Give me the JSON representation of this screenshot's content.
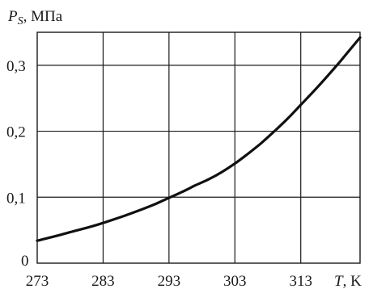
{
  "chart_data": {
    "type": "line",
    "ylabel_var": "P",
    "ylabel_sub": "S",
    "ylabel_unit": ", МПа",
    "xlabel_var": "T",
    "xlabel_unit": ", K",
    "xlim": [
      273,
      322
    ],
    "ylim": [
      0,
      0.35
    ],
    "x_ticks": [
      {
        "value": 273,
        "label": "273"
      },
      {
        "value": 283,
        "label": "283"
      },
      {
        "value": 293,
        "label": "293"
      },
      {
        "value": 303,
        "label": "303"
      },
      {
        "value": 313,
        "label": "313"
      }
    ],
    "y_ticks": [
      {
        "value": 0,
        "label": "0"
      },
      {
        "value": 0.1,
        "label": "0,1"
      },
      {
        "value": 0.2,
        "label": "0,2"
      },
      {
        "value": 0.3,
        "label": "0,3"
      }
    ],
    "grid": true,
    "series": [
      {
        "x": [
          273,
          275,
          278,
          281,
          283,
          286,
          289,
          291,
          293,
          295,
          297,
          299,
          301,
          303,
          305,
          307,
          309,
          311,
          313,
          315,
          317,
          319,
          320,
          322
        ],
        "y": [
          0.034,
          0.039,
          0.047,
          0.055,
          0.061,
          0.071,
          0.082,
          0.09,
          0.099,
          0.108,
          0.118,
          0.127,
          0.138,
          0.151,
          0.166,
          0.182,
          0.2,
          0.219,
          0.24,
          0.261,
          0.283,
          0.306,
          0.318,
          0.342
        ]
      }
    ]
  }
}
